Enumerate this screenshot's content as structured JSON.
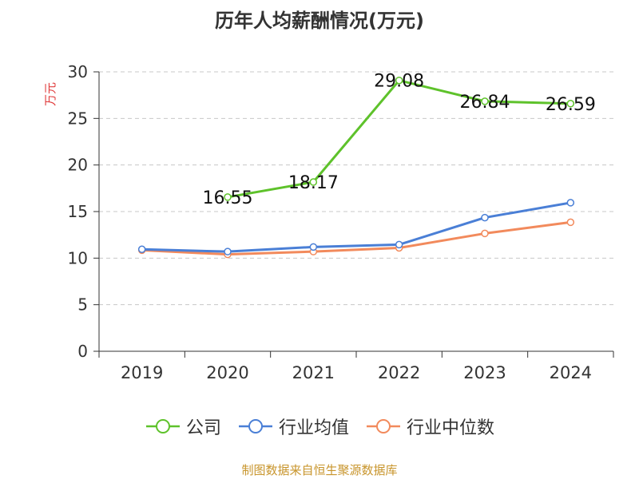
{
  "title": "历年人均薪酬情况(万元)",
  "source": "制图数据来自恒生聚源数据库",
  "chart_data": {
    "type": "line",
    "title": "历年人均薪酬情况(万元)",
    "xlabel": "",
    "ylabel": "万元",
    "categories": [
      "2019",
      "2020",
      "2021",
      "2022",
      "2023",
      "2024"
    ],
    "ylim": [
      0,
      30
    ],
    "yticks": [
      0,
      5,
      10,
      15,
      20,
      25,
      30
    ],
    "grid": true,
    "legend_position": "bottom",
    "series": [
      {
        "name": "公司",
        "color": "#5ec22b",
        "values": [
          null,
          16.55,
          18.17,
          29.08,
          26.84,
          26.59
        ],
        "labels": [
          "",
          "16.55",
          "18.17",
          "29.08",
          "26.84",
          "26.59"
        ]
      },
      {
        "name": "行业均值",
        "color": "#4a7fd6",
        "values": [
          10.95,
          10.7,
          11.2,
          11.45,
          14.35,
          15.95
        ],
        "labels": []
      },
      {
        "name": "行业中位数",
        "color": "#f28a5c",
        "values": [
          10.85,
          10.4,
          10.7,
          11.1,
          12.65,
          13.85
        ],
        "labels": []
      }
    ]
  }
}
